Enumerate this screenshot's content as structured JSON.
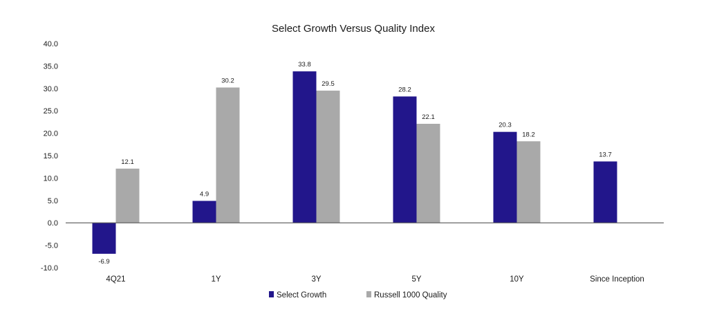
{
  "chart_data": {
    "type": "bar",
    "title": "Select Growth Versus Quality Index",
    "xlabel": "",
    "ylabel": "",
    "categories": [
      "4Q21",
      "1Y",
      "3Y",
      "5Y",
      "10Y",
      "Since Inception"
    ],
    "series": [
      {
        "name": "Select Growth",
        "color": "#22168b",
        "values": [
          -6.9,
          4.9,
          33.8,
          28.2,
          20.3,
          13.7
        ],
        "labels": [
          "-6.9",
          "4.9",
          "33.8",
          "28.2",
          "20.3",
          "13.7"
        ]
      },
      {
        "name": "Russell 1000 Quality",
        "color": "#a9a9a9",
        "values": [
          12.1,
          30.2,
          29.5,
          22.1,
          18.2,
          null
        ],
        "labels": [
          "12.1",
          "30.2",
          "29.5",
          "22.1",
          "18.2",
          null
        ]
      }
    ],
    "ylim": [
      -10,
      40
    ],
    "yticks": [
      "40.0",
      "35.0",
      "30.0",
      "25.0",
      "20.0",
      "15.0",
      "10.0",
      "5.0",
      "0.0",
      "-5.0",
      "-10.0"
    ],
    "ytick_values": [
      40,
      35,
      30,
      25,
      20,
      15,
      10,
      5,
      0,
      -5,
      -10
    ],
    "grid": false,
    "legend": "bottom-center"
  }
}
